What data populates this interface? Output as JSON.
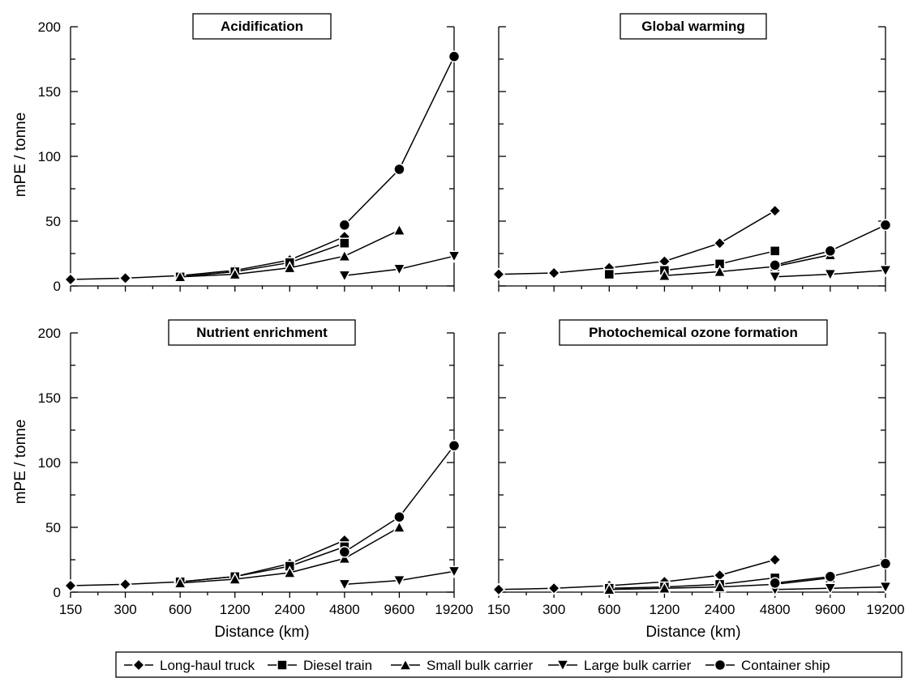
{
  "figure": {
    "xlabel": "Distance (km)",
    "ylabel": "mPE / tonne",
    "legend_position": "bottom"
  },
  "chart_data": [
    {
      "type": "line",
      "title": "Acidification",
      "x": [
        150,
        300,
        600,
        1200,
        2400,
        4800,
        9600,
        19200
      ],
      "x_scale": "log2",
      "ylim": [
        0,
        200
      ],
      "yticks": [
        0,
        50,
        100,
        150,
        200
      ],
      "series": [
        {
          "name": "Long-haul truck",
          "marker": "diamond",
          "points": [
            [
              150,
              5
            ],
            [
              300,
              6
            ],
            [
              600,
              8
            ],
            [
              1200,
              12
            ],
            [
              2400,
              20
            ],
            [
              4800,
              38
            ]
          ]
        },
        {
          "name": "Diesel train",
          "marker": "square",
          "points": [
            [
              600,
              7
            ],
            [
              1200,
              11
            ],
            [
              2400,
              18
            ],
            [
              4800,
              33
            ]
          ]
        },
        {
          "name": "Small bulk carrier",
          "marker": "triangle-up",
          "points": [
            [
              600,
              7
            ],
            [
              1200,
              9
            ],
            [
              2400,
              14
            ],
            [
              4800,
              23
            ],
            [
              9600,
              43
            ]
          ]
        },
        {
          "name": "Large bulk carrier",
          "marker": "triangle-down",
          "points": [
            [
              4800,
              8
            ],
            [
              9600,
              13
            ],
            [
              19200,
              23
            ]
          ]
        },
        {
          "name": "Container ship",
          "marker": "circle",
          "points": [
            [
              4800,
              47
            ],
            [
              9600,
              90
            ],
            [
              19200,
              177
            ]
          ]
        }
      ]
    },
    {
      "type": "line",
      "title": "Global warming",
      "x": [
        150,
        300,
        600,
        1200,
        2400,
        4800,
        9600,
        19200
      ],
      "x_scale": "log2",
      "ylim": [
        0,
        200
      ],
      "yticks": [
        0,
        50,
        100,
        150,
        200
      ],
      "series": [
        {
          "name": "Long-haul truck",
          "marker": "diamond",
          "points": [
            [
              150,
              9
            ],
            [
              300,
              10
            ],
            [
              600,
              14
            ],
            [
              1200,
              19
            ],
            [
              2400,
              33
            ],
            [
              4800,
              58
            ]
          ]
        },
        {
          "name": "Diesel train",
          "marker": "square",
          "points": [
            [
              600,
              9
            ],
            [
              1200,
              12
            ],
            [
              2400,
              17
            ],
            [
              4800,
              27
            ]
          ]
        },
        {
          "name": "Small bulk carrier",
          "marker": "triangle-up",
          "points": [
            [
              1200,
              8
            ],
            [
              2400,
              11
            ],
            [
              4800,
              15
            ],
            [
              9600,
              24
            ]
          ]
        },
        {
          "name": "Large bulk carrier",
          "marker": "triangle-down",
          "points": [
            [
              4800,
              7
            ],
            [
              9600,
              9
            ],
            [
              19200,
              12
            ]
          ]
        },
        {
          "name": "Container ship",
          "marker": "circle",
          "points": [
            [
              4800,
              16
            ],
            [
              9600,
              27
            ],
            [
              19200,
              47
            ]
          ]
        }
      ]
    },
    {
      "type": "line",
      "title": "Nutrient enrichment",
      "x": [
        150,
        300,
        600,
        1200,
        2400,
        4800,
        9600,
        19200
      ],
      "x_scale": "log2",
      "ylim": [
        0,
        200
      ],
      "yticks": [
        0,
        50,
        100,
        150,
        200
      ],
      "series": [
        {
          "name": "Long-haul truck",
          "marker": "diamond",
          "points": [
            [
              150,
              5
            ],
            [
              300,
              6
            ],
            [
              600,
              8
            ],
            [
              1200,
              12
            ],
            [
              2400,
              22
            ],
            [
              4800,
              40
            ]
          ]
        },
        {
          "name": "Diesel train",
          "marker": "square",
          "points": [
            [
              600,
              8
            ],
            [
              1200,
              12
            ],
            [
              2400,
              20
            ],
            [
              4800,
              35
            ]
          ]
        },
        {
          "name": "Small bulk carrier",
          "marker": "triangle-up",
          "points": [
            [
              600,
              7
            ],
            [
              1200,
              10
            ],
            [
              2400,
              15
            ],
            [
              4800,
              26
            ],
            [
              9600,
              50
            ]
          ]
        },
        {
          "name": "Large bulk carrier",
          "marker": "triangle-down",
          "points": [
            [
              4800,
              6
            ],
            [
              9600,
              9
            ],
            [
              19200,
              16
            ]
          ]
        },
        {
          "name": "Container ship",
          "marker": "circle",
          "points": [
            [
              4800,
              31
            ],
            [
              9600,
              58
            ],
            [
              19200,
              113
            ]
          ]
        }
      ]
    },
    {
      "type": "line",
      "title": "Photochemical ozone formation",
      "x": [
        150,
        300,
        600,
        1200,
        2400,
        4800,
        9600,
        19200
      ],
      "x_scale": "log2",
      "ylim": [
        0,
        200
      ],
      "yticks": [
        0,
        50,
        100,
        150,
        200
      ],
      "series": [
        {
          "name": "Long-haul truck",
          "marker": "diamond",
          "points": [
            [
              150,
              2
            ],
            [
              300,
              3
            ],
            [
              600,
              5
            ],
            [
              1200,
              8
            ],
            [
              2400,
              13
            ],
            [
              4800,
              25
            ]
          ]
        },
        {
          "name": "Diesel train",
          "marker": "square",
          "points": [
            [
              600,
              3
            ],
            [
              1200,
              4
            ],
            [
              2400,
              6
            ],
            [
              4800,
              11
            ]
          ]
        },
        {
          "name": "Small bulk carrier",
          "marker": "triangle-up",
          "points": [
            [
              600,
              2
            ],
            [
              1200,
              3
            ],
            [
              2400,
              4
            ],
            [
              4800,
              6
            ],
            [
              9600,
              11
            ]
          ]
        },
        {
          "name": "Large bulk carrier",
          "marker": "triangle-down",
          "points": [
            [
              4800,
              2
            ],
            [
              9600,
              3
            ],
            [
              19200,
              4
            ]
          ]
        },
        {
          "name": "Container ship",
          "marker": "circle",
          "points": [
            [
              4800,
              7
            ],
            [
              9600,
              12
            ],
            [
              19200,
              22
            ]
          ]
        }
      ]
    }
  ]
}
